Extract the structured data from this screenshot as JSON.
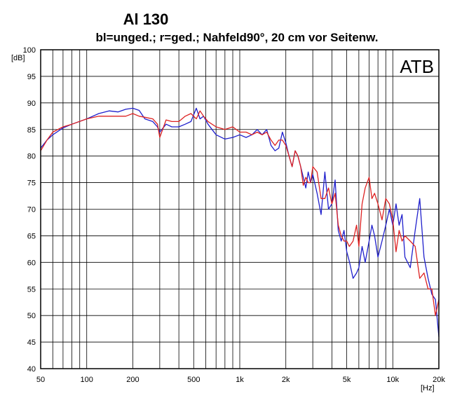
{
  "chart_data": {
    "type": "line",
    "title": "Al 130",
    "subtitle": "bl=unged.; r=ged.; Nahfeld90°, 20 cm vor Seitenw.",
    "xlabel": "[Hz]",
    "ylabel": "[dB]",
    "brand": "ATB",
    "x_scale": "log",
    "xlim": [
      50,
      20000
    ],
    "ylim": [
      40,
      100
    ],
    "grid": true,
    "x_ticks": [
      {
        "value": 50,
        "label": "50"
      },
      {
        "value": 100,
        "label": "100"
      },
      {
        "value": 200,
        "label": "200"
      },
      {
        "value": 500,
        "label": "500"
      },
      {
        "value": 1000,
        "label": "1k"
      },
      {
        "value": 2000,
        "label": "2k"
      },
      {
        "value": 5000,
        "label": "5k"
      },
      {
        "value": 10000,
        "label": "10k"
      },
      {
        "value": 20000,
        "label": "20k"
      }
    ],
    "y_ticks": [
      {
        "value": 100,
        "label": "100"
      },
      {
        "value": 95,
        "label": "95"
      },
      {
        "value": 90,
        "label": "90"
      },
      {
        "value": 85,
        "label": "85"
      },
      {
        "value": 80,
        "label": "80"
      },
      {
        "value": 75,
        "label": "75"
      },
      {
        "value": 70,
        "label": "70"
      },
      {
        "value": 65,
        "label": "65"
      },
      {
        "value": 60,
        "label": "60"
      },
      {
        "value": 55,
        "label": "55"
      },
      {
        "value": 50,
        "label": "50"
      },
      {
        "value": 45,
        "label": "45"
      },
      {
        "value": 40,
        "label": "40"
      }
    ],
    "series": [
      {
        "color": "#2020cc",
        "x": [
          50,
          55,
          60,
          70,
          80,
          100,
          120,
          140,
          160,
          180,
          200,
          220,
          240,
          270,
          290,
          300,
          330,
          360,
          400,
          440,
          480,
          520,
          550,
          580,
          620,
          700,
          800,
          900,
          1000,
          1100,
          1200,
          1300,
          1400,
          1500,
          1600,
          1700,
          1800,
          1900,
          2000,
          2100,
          2200,
          2300,
          2400,
          2500,
          2600,
          2700,
          2800,
          2900,
          3000,
          3200,
          3400,
          3600,
          3800,
          4000,
          4200,
          4400,
          4600,
          4800,
          5000,
          5200,
          5500,
          5800,
          6000,
          6300,
          6600,
          7000,
          7300,
          7600,
          8000,
          8500,
          9000,
          9500,
          10000,
          10500,
          11000,
          11500,
          12000,
          13000,
          14000,
          15000,
          16000,
          17000,
          18000,
          19000,
          20000
        ],
        "y": [
          81.5,
          83,
          84,
          85.3,
          86,
          87,
          88,
          88.5,
          88.3,
          88.8,
          89,
          88.6,
          87,
          86.5,
          85.5,
          84.5,
          86,
          85.5,
          85.5,
          86,
          86.5,
          89,
          87,
          87.5,
          86,
          84,
          83.2,
          83.5,
          84,
          83.5,
          84,
          85,
          84,
          85,
          82,
          81,
          81.5,
          84.5,
          82.5,
          80,
          78,
          81,
          80,
          78,
          76,
          74,
          77,
          75,
          76.5,
          73,
          69,
          77,
          70,
          71,
          75.5,
          66,
          64,
          66,
          62,
          60.2,
          57,
          58,
          59,
          63,
          60,
          64,
          67,
          65,
          61,
          64,
          67,
          70,
          67,
          71,
          67,
          69,
          61,
          59,
          66,
          72,
          61,
          57,
          54,
          53,
          46
        ]
      },
      {
        "color": "#dd2222",
        "x": [
          50,
          55,
          60,
          70,
          80,
          100,
          120,
          140,
          160,
          180,
          200,
          220,
          240,
          270,
          290,
          300,
          330,
          360,
          400,
          440,
          480,
          520,
          550,
          580,
          620,
          700,
          800,
          900,
          1000,
          1100,
          1200,
          1300,
          1400,
          1500,
          1600,
          1700,
          1800,
          1900,
          2000,
          2100,
          2200,
          2300,
          2400,
          2500,
          2600,
          2700,
          2800,
          2900,
          3000,
          3200,
          3400,
          3600,
          3800,
          4000,
          4200,
          4400,
          4600,
          4800,
          5000,
          5200,
          5500,
          5800,
          6000,
          6300,
          6600,
          7000,
          7300,
          7600,
          8000,
          8500,
          9000,
          9500,
          10000,
          10500,
          11000,
          11500,
          12000,
          13000,
          14000,
          15000,
          16000,
          17000,
          18000,
          19000,
          20000
        ],
        "y": [
          81,
          83,
          84.5,
          85.5,
          86,
          87,
          87.5,
          87.5,
          87.5,
          87.5,
          88,
          87.5,
          87.3,
          87,
          86,
          83.5,
          86.8,
          86.5,
          86.5,
          87.5,
          88,
          87,
          88.5,
          87.5,
          86.5,
          85.5,
          85,
          85.5,
          84.5,
          84.5,
          84,
          84.5,
          84,
          84.5,
          83,
          82,
          83,
          83,
          82,
          80,
          78,
          81,
          80,
          78,
          74.5,
          76,
          75,
          75,
          78,
          77,
          72,
          72,
          74,
          71,
          73,
          67,
          65,
          64,
          64,
          63,
          64,
          67,
          63,
          71,
          74,
          76,
          72,
          73,
          71,
          68,
          72,
          71,
          68,
          62,
          66,
          64,
          65,
          64,
          63,
          57,
          58,
          55,
          55,
          50,
          53
        ]
      }
    ]
  }
}
